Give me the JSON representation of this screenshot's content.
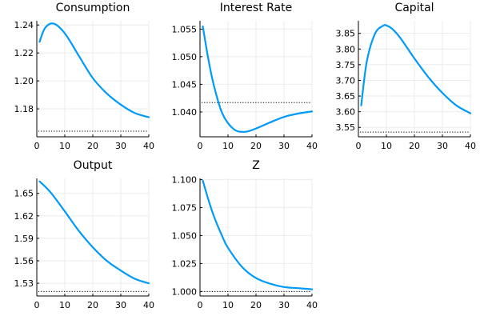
{
  "figure": {
    "layout": "2 rows x 3 columns"
  },
  "chart_data": [
    {
      "type": "line",
      "title": "Consumption",
      "xlim": [
        0,
        40
      ],
      "ylim": [
        1.16,
        1.243
      ],
      "xticks": [
        "0",
        "10",
        "20",
        "30",
        "40"
      ],
      "yticks": [
        1.18,
        1.2,
        1.22,
        1.24
      ],
      "ytick_labels": [
        "1.18",
        "1.20",
        "1.22",
        "1.24"
      ],
      "grid": true,
      "legend": "none",
      "steady_state": 1.164,
      "series": [
        {
          "color": "#009af9",
          "x": [
            1,
            3,
            6,
            10,
            15,
            20,
            25,
            30,
            35,
            40
          ],
          "y": [
            1.228,
            1.238,
            1.241,
            1.234,
            1.218,
            1.202,
            1.191,
            1.183,
            1.177,
            1.174
          ]
        }
      ]
    },
    {
      "type": "line",
      "title": "Interest Rate",
      "xlim": [
        0,
        40
      ],
      "ylim": [
        1.0355,
        1.0565
      ],
      "xticks": [
        "0",
        "10",
        "20",
        "30",
        "40"
      ],
      "yticks": [
        1.04,
        1.045,
        1.05,
        1.055
      ],
      "ytick_labels": [
        "1.040",
        "1.045",
        "1.050",
        "1.055"
      ],
      "grid": true,
      "legend": "none",
      "steady_state": 1.0417,
      "series": [
        {
          "color": "#009af9",
          "x": [
            1,
            3,
            5,
            8,
            12,
            16,
            20,
            25,
            30,
            35,
            40
          ],
          "y": [
            1.0555,
            1.0495,
            1.0447,
            1.0397,
            1.0369,
            1.0364,
            1.037,
            1.0381,
            1.0391,
            1.0397,
            1.0401
          ]
        }
      ]
    },
    {
      "type": "line",
      "title": "Capital",
      "xlim": [
        0,
        40
      ],
      "ylim": [
        3.52,
        3.89
      ],
      "xticks": [
        "0",
        "10",
        "20",
        "30",
        "40"
      ],
      "yticks": [
        3.55,
        3.6,
        3.65,
        3.7,
        3.75,
        3.8,
        3.85
      ],
      "ytick_labels": [
        "3.55",
        "3.60",
        "3.65",
        "3.70",
        "3.75",
        "3.80",
        "3.85"
      ],
      "grid": true,
      "legend": "none",
      "steady_state": 3.535,
      "series": [
        {
          "color": "#009af9",
          "x": [
            1,
            3,
            6,
            9,
            10,
            12,
            15,
            20,
            25,
            30,
            35,
            40
          ],
          "y": [
            3.62,
            3.76,
            3.85,
            3.875,
            3.875,
            3.865,
            3.835,
            3.77,
            3.71,
            3.66,
            3.62,
            3.595
          ]
        }
      ]
    },
    {
      "type": "line",
      "title": "Output",
      "xlim": [
        0,
        40
      ],
      "ylim": [
        1.513,
        1.67
      ],
      "xticks": [
        "0",
        "10",
        "20",
        "30",
        "40"
      ],
      "yticks": [
        1.53,
        1.56,
        1.59,
        1.62,
        1.65
      ],
      "ytick_labels": [
        "1.53",
        "1.56",
        "1.59",
        "1.62",
        "1.65"
      ],
      "grid": true,
      "legend": "none",
      "steady_state": 1.519,
      "series": [
        {
          "color": "#009af9",
          "x": [
            1,
            5,
            10,
            15,
            20,
            25,
            30,
            35,
            40
          ],
          "y": [
            1.666,
            1.651,
            1.626,
            1.6,
            1.578,
            1.56,
            1.547,
            1.536,
            1.53
          ]
        }
      ]
    },
    {
      "type": "line",
      "title": "Z",
      "xlim": [
        0,
        40
      ],
      "ylim": [
        0.996,
        1.101
      ],
      "xticks": [
        "0",
        "10",
        "20",
        "30",
        "40"
      ],
      "yticks": [
        1.0,
        1.025,
        1.05,
        1.075,
        1.1
      ],
      "ytick_labels": [
        "1.000",
        "1.025",
        "1.050",
        "1.075",
        "1.100"
      ],
      "grid": true,
      "legend": "none",
      "steady_state": 1.0,
      "series": [
        {
          "color": "#009af9",
          "x": [
            1,
            3,
            5,
            8,
            10,
            15,
            20,
            25,
            30,
            35,
            40
          ],
          "y": [
            1.099,
            1.082,
            1.067,
            1.049,
            1.039,
            1.022,
            1.012,
            1.007,
            1.004,
            1.003,
            1.002
          ]
        }
      ]
    }
  ]
}
